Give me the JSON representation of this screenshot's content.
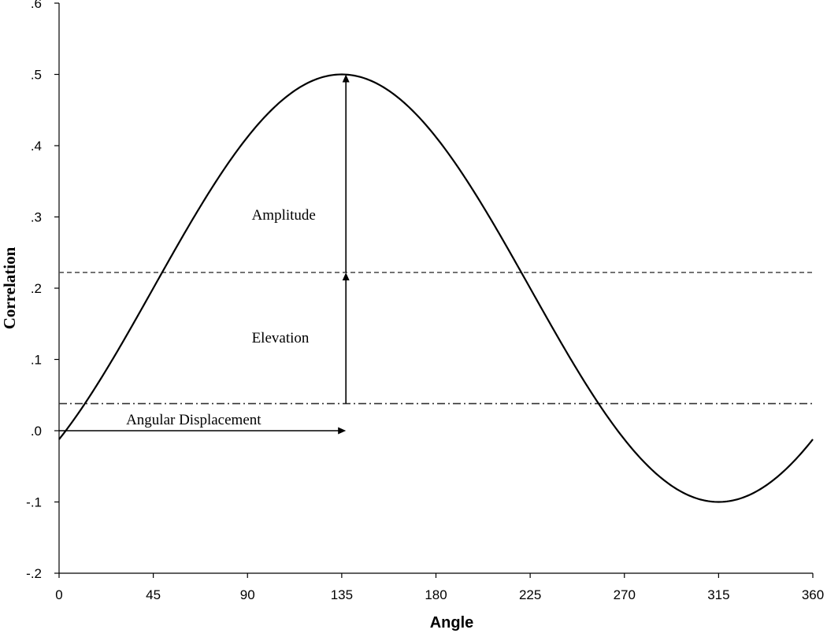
{
  "chart_data": {
    "type": "line",
    "title": "",
    "xlabel": "Angle",
    "ylabel": "Correlation",
    "xlim": [
      0,
      360
    ],
    "ylim": [
      -0.2,
      0.6
    ],
    "x_ticks": [
      0,
      45,
      90,
      135,
      180,
      225,
      270,
      315,
      360
    ],
    "x_tick_labels": [
      "0",
      "45",
      "90",
      "135",
      "180",
      "225",
      "270",
      "315",
      "360"
    ],
    "y_ticks": [
      -0.2,
      -0.1,
      0.0,
      0.1,
      0.2,
      0.3,
      0.4,
      0.5,
      0.6
    ],
    "y_tick_labels": [
      "-.2",
      "-.1",
      ".0",
      ".1",
      ".2",
      ".3",
      ".4",
      ".5",
      ".6"
    ],
    "grid": false,
    "curve": {
      "elevation": 0.2,
      "amplitude": 0.3,
      "angular_displacement": 135,
      "x_start": 0,
      "x_end": 360
    },
    "reference_lines": [
      {
        "name": "elevation-line",
        "y": 0.222,
        "style": "dashed"
      },
      {
        "name": "baseline-line",
        "y": 0.038,
        "style": "dash-dot"
      }
    ],
    "annotations": {
      "amplitude": {
        "text": "Amplitude",
        "x": 135,
        "y_from": 0.222,
        "y_to": 0.5
      },
      "elevation": {
        "text": "Elevation",
        "x": 135,
        "y_from": 0.038,
        "y_to": 0.222
      },
      "angular_displacement": {
        "text": "Angular Displacement",
        "y": 0.0,
        "x_from": 0,
        "x_to": 137
      }
    }
  }
}
